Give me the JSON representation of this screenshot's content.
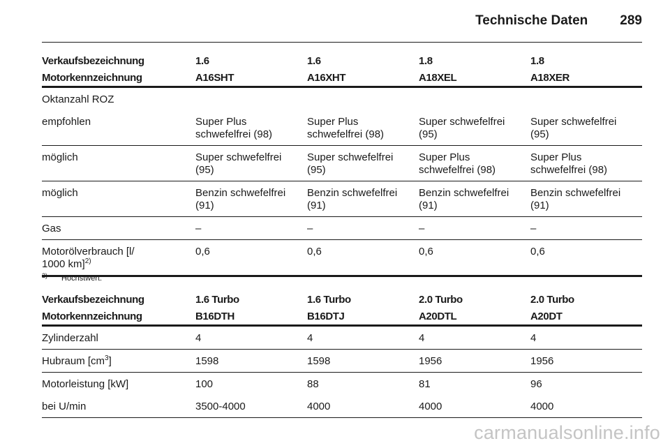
{
  "header": {
    "title": "Technische Daten",
    "page_number": "289"
  },
  "table1": {
    "head1": [
      "Verkaufsbezeichnung",
      "1.6",
      "1.6",
      "1.8",
      "1.8"
    ],
    "head2": [
      "Motorkennzeichnung",
      "A16SHT",
      "A16XHT",
      "A18XEL",
      "A18XER"
    ],
    "section_label": "Oktanzahl ROZ",
    "rows": [
      {
        "label": "empfohlen",
        "cells": [
          [
            "Super Plus",
            "schwefelfrei (98)"
          ],
          [
            "Super Plus",
            "schwefelfrei (98)"
          ],
          [
            "Super schwefelfrei",
            "(95)"
          ],
          [
            "Super schwefelfrei",
            "(95)"
          ]
        ]
      },
      {
        "label": "möglich",
        "cells": [
          [
            "Super schwefelfrei",
            "(95)"
          ],
          [
            "Super schwefelfrei",
            "(95)"
          ],
          [
            "Super Plus",
            "schwefelfrei (98)"
          ],
          [
            "Super Plus",
            "schwefelfrei (98)"
          ]
        ]
      },
      {
        "label": "möglich",
        "cells": [
          [
            "Benzin schwefelfrei",
            "(91)"
          ],
          [
            "Benzin schwefelfrei",
            "(91)"
          ],
          [
            "Benzin schwefelfrei",
            "(91)"
          ],
          [
            "Benzin schwefelfrei",
            "(91)"
          ]
        ]
      },
      {
        "label": "Gas",
        "cells": [
          [
            "–"
          ],
          [
            "–"
          ],
          [
            "–"
          ],
          [
            "–"
          ]
        ]
      }
    ],
    "oil_row": {
      "label_line1": "Motorölverbrauch [l/",
      "label_line2": "1000 km]",
      "label_sup": "2)",
      "values": [
        "0,6",
        "0,6",
        "0,6",
        "0,6"
      ]
    }
  },
  "footnote": {
    "mark": "2)",
    "text": "Höchstwert."
  },
  "table2": {
    "head1": [
      "Verkaufsbezeichnung",
      "1.6 Turbo",
      "1.6 Turbo",
      "2.0 Turbo",
      "2.0 Turbo"
    ],
    "head2": [
      "Motorkennzeichnung",
      "B16DTH",
      "B16DTJ",
      "A20DTL",
      "A20DT"
    ],
    "rows": [
      {
        "label": "Zylinderzahl",
        "values": [
          "4",
          "4",
          "4",
          "4"
        ]
      },
      {
        "label_pre": "Hubraum [cm",
        "label_sup": "3",
        "label_post": "]",
        "values": [
          "1598",
          "1598",
          "1956",
          "1956"
        ]
      },
      {
        "label": "Motorleistung [kW]",
        "values": [
          "100",
          "88",
          "81",
          "96"
        ]
      },
      {
        "label": "bei U/min",
        "values": [
          "3500-4000",
          "4000",
          "4000",
          "4000"
        ]
      }
    ]
  },
  "watermark": "carmanualsonline.info"
}
